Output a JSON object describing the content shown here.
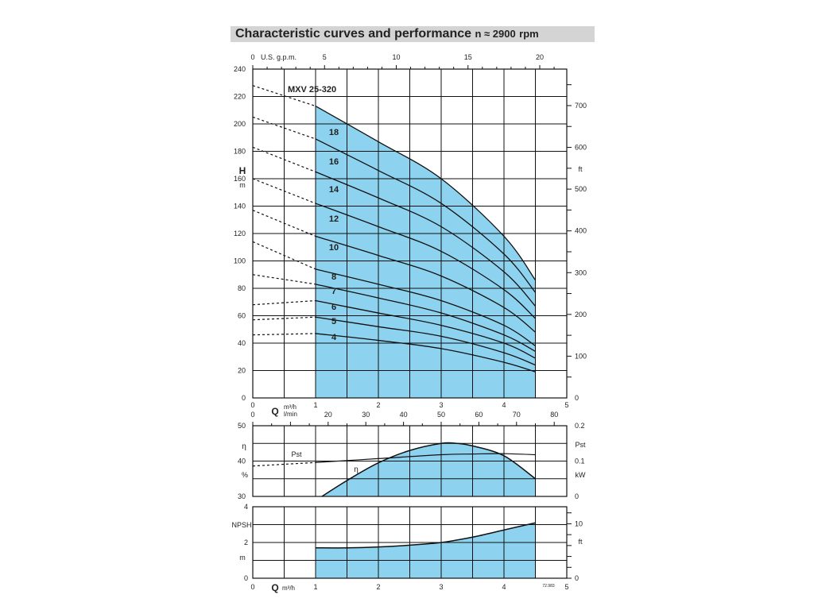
{
  "title": {
    "main": "Characteristic curves and performance",
    "speed": "n ≈ 2900",
    "unit": "rpm"
  },
  "colors": {
    "fill": "#8dd3ef",
    "grid": "#111111",
    "title_bg": "#d4d4d4"
  },
  "figure_code": "72.983",
  "chart_data": [
    {
      "type": "line",
      "title": "MXV 25-320",
      "xlabel": "Q",
      "x_unit": "m³/h",
      "x_top_label": "U.S. g.p.m.",
      "ylabel": "H",
      "y_unit": "m",
      "y2_unit": "ft",
      "xlim": [
        0,
        5
      ],
      "ylim": [
        0,
        240
      ],
      "x_ticks": [
        0,
        1,
        2,
        3,
        4,
        5
      ],
      "y_ticks": [
        0,
        20,
        40,
        60,
        80,
        100,
        120,
        140,
        160,
        180,
        200,
        220,
        240
      ],
      "gpm_ticks": [
        0,
        5,
        10,
        15,
        20
      ],
      "ft_ticks": [
        0,
        100,
        200,
        300,
        400,
        500,
        600,
        700
      ],
      "operating_range": [
        1,
        4.5
      ],
      "x": [
        0,
        1,
        2,
        3,
        4,
        4.5
      ],
      "series": [
        {
          "name": "18",
          "values": [
            228,
            213,
            187,
            160,
            118,
            86
          ]
        },
        {
          "name": "16",
          "values": [
            205,
            189,
            166,
            142,
            105,
            77
          ]
        },
        {
          "name": "14",
          "values": [
            183,
            165,
            146,
            125,
            92,
            67
          ]
        },
        {
          "name": "12",
          "values": [
            160,
            142,
            125,
            107,
            79,
            58
          ]
        },
        {
          "name": "10",
          "values": [
            137,
            118,
            104,
            89,
            66,
            48
          ]
        },
        {
          "name": "8",
          "values": [
            114,
            94,
            83,
            71,
            53,
            38
          ]
        },
        {
          "name": "7",
          "values": [
            90,
            83,
            73,
            62,
            46,
            34
          ]
        },
        {
          "name": "6",
          "values": [
            68,
            71,
            62,
            53,
            40,
            29
          ]
        },
        {
          "name": "5",
          "values": [
            57,
            59,
            52,
            45,
            33,
            24
          ]
        },
        {
          "name": "4",
          "values": [
            46,
            47,
            42,
            36,
            26,
            19
          ]
        }
      ]
    },
    {
      "type": "line",
      "xlabel": "Q",
      "x_unit": "m³/h",
      "x2_unit": "l/min",
      "lmin_ticks": [
        0,
        20,
        30,
        40,
        50,
        60,
        70,
        80
      ],
      "ylabel": "η",
      "y_unit": "%",
      "ylim": [
        30,
        50
      ],
      "y_ticks": [
        30,
        40,
        50
      ],
      "y2_label": "Pst",
      "y2_unit": "kW",
      "y2lim": [
        0,
        0.2
      ],
      "y2_ticks": [
        0,
        0.1,
        0.2
      ],
      "series": [
        {
          "name": "η",
          "x": [
            1.1,
            1.5,
            2,
            2.5,
            3,
            3.25,
            3.5,
            4,
            4.5
          ],
          "values": [
            30,
            34.5,
            39.5,
            43,
            45,
            45,
            44.3,
            41.5,
            35
          ]
        },
        {
          "name": "Pst",
          "x": [
            0,
            0.5,
            1,
            2,
            3,
            3.5,
            4,
            4.5
          ],
          "values": [
            0.086,
            0.091,
            0.096,
            0.107,
            0.118,
            0.12,
            0.121,
            0.118
          ],
          "dashed_below": 1
        }
      ]
    },
    {
      "type": "area",
      "xlabel": "Q",
      "x_unit": "m³/h",
      "ylabel": "NPSH",
      "y_unit": "m",
      "y2_unit": "ft",
      "ylim": [
        0,
        4
      ],
      "y_ticks": [
        0,
        2,
        4
      ],
      "y2_ticks": [
        0,
        10
      ],
      "x_ticks": [
        0,
        1,
        2,
        3,
        4,
        5
      ],
      "series": [
        {
          "name": "NPSH",
          "x": [
            1,
            1.5,
            2,
            2.5,
            3,
            3.5,
            4,
            4.5
          ],
          "values": [
            1.7,
            1.7,
            1.75,
            1.85,
            2.0,
            2.3,
            2.7,
            3.1
          ]
        }
      ]
    }
  ]
}
